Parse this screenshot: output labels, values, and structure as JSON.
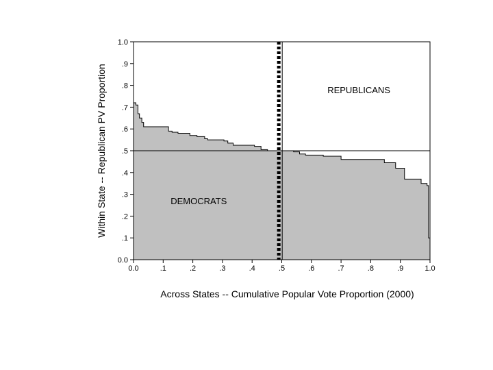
{
  "chart_data": {
    "type": "area",
    "title": "",
    "xlabel": "Across States -- Cumulative Popular Vote Proportion (2000)",
    "ylabel": "Within State -- Republican PV Proportion",
    "xlim": [
      0,
      1
    ],
    "ylim": [
      0,
      1
    ],
    "x_ticks": [
      "0.0",
      ".1",
      ".2",
      ".3",
      ".4",
      ".5",
      ".6",
      ".7",
      ".8",
      ".9",
      "1.0"
    ],
    "y_ticks": [
      "0.0",
      ".1",
      ".2",
      ".3",
      ".4",
      ".5",
      ".6",
      ".7",
      ".8",
      ".9",
      "1.0"
    ],
    "fill_color": "#c0c0c0",
    "line_color": "#000000",
    "reference_line_y": 0.5,
    "median_line_x": 0.49,
    "annotations": [
      {
        "text": "REPUBLICANS",
        "x": 0.76,
        "y": 0.78
      },
      {
        "text": "DEMOCRATS",
        "x": 0.22,
        "y": 0.27
      }
    ],
    "series": [
      {
        "name": "Within State Republican PV Proportion (step)",
        "points": [
          [
            0.0,
            0.72
          ],
          [
            0.008,
            0.71
          ],
          [
            0.015,
            0.67
          ],
          [
            0.02,
            0.65
          ],
          [
            0.028,
            0.63
          ],
          [
            0.034,
            0.61
          ],
          [
            0.118,
            0.59
          ],
          [
            0.13,
            0.585
          ],
          [
            0.15,
            0.58
          ],
          [
            0.19,
            0.57
          ],
          [
            0.214,
            0.565
          ],
          [
            0.24,
            0.555
          ],
          [
            0.25,
            0.55
          ],
          [
            0.305,
            0.545
          ],
          [
            0.318,
            0.535
          ],
          [
            0.336,
            0.525
          ],
          [
            0.408,
            0.52
          ],
          [
            0.43,
            0.505
          ],
          [
            0.452,
            0.5
          ],
          [
            0.54,
            0.495
          ],
          [
            0.56,
            0.485
          ],
          [
            0.58,
            0.48
          ],
          [
            0.64,
            0.475
          ],
          [
            0.7,
            0.46
          ],
          [
            0.846,
            0.445
          ],
          [
            0.884,
            0.42
          ],
          [
            0.914,
            0.37
          ],
          [
            0.97,
            0.35
          ],
          [
            0.985,
            0.35
          ],
          [
            0.99,
            0.34
          ],
          [
            0.995,
            0.1
          ],
          [
            1.0,
            0.1
          ]
        ]
      }
    ]
  }
}
